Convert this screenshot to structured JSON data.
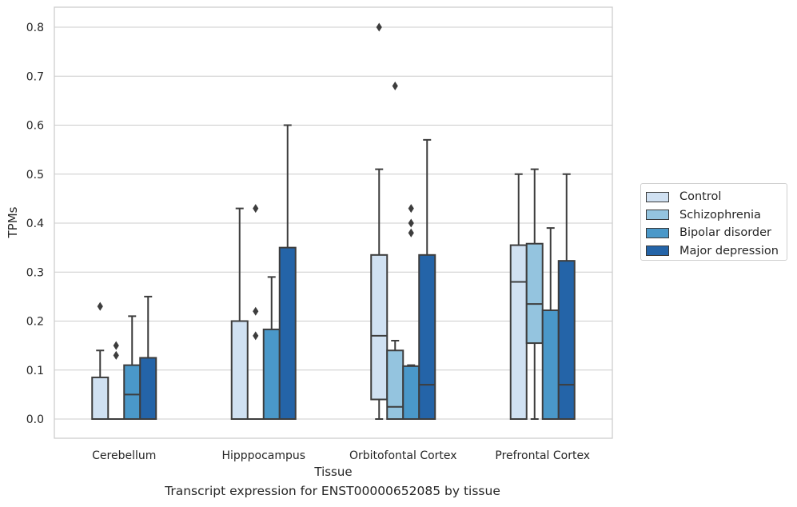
{
  "chart_data": {
    "type": "box",
    "title": "",
    "caption": "Transcript expression for ENST00000652085 by tissue",
    "xlabel": "Tissue",
    "ylabel": "TPMs",
    "ylim": [
      -0.04,
      0.84
    ],
    "yticks": [
      0.0,
      0.1,
      0.2,
      0.3,
      0.4,
      0.5,
      0.6,
      0.7,
      0.8
    ],
    "ytick_labels": [
      "0.0",
      "0.1",
      "0.2",
      "0.3",
      "0.4",
      "0.5",
      "0.6",
      "0.7",
      "0.8"
    ],
    "grid": "horizontal",
    "legend_position": "right",
    "categories": [
      "Cerebellum",
      "Hipppocampus",
      "Orbitofontal Cortex",
      "Prefrontal Cortex"
    ],
    "series": [
      {
        "name": "Control",
        "color": "#d0e1f2",
        "boxes": [
          {
            "whisker_low": 0.0,
            "q1": 0.0,
            "median": 0.0,
            "q3": 0.085,
            "whisker_high": 0.14,
            "outliers": [
              0.23
            ]
          },
          {
            "whisker_low": 0.0,
            "q1": 0.0,
            "median": 0.0,
            "q3": 0.2,
            "whisker_high": 0.43,
            "outliers": []
          },
          {
            "whisker_low": 0.0,
            "q1": 0.04,
            "median": 0.17,
            "q3": 0.335,
            "whisker_high": 0.51,
            "outliers": [
              0.8
            ]
          },
          {
            "whisker_low": 0.0,
            "q1": 0.0,
            "median": 0.28,
            "q3": 0.355,
            "whisker_high": 0.5,
            "outliers": []
          }
        ]
      },
      {
        "name": "Schizophrenia",
        "color": "#94c4df",
        "boxes": [
          {
            "whisker_low": 0.0,
            "q1": 0.0,
            "median": 0.0,
            "q3": 0.0,
            "whisker_high": 0.0,
            "outliers": [
              0.13,
              0.15
            ]
          },
          {
            "whisker_low": 0.0,
            "q1": 0.0,
            "median": 0.0,
            "q3": 0.0,
            "whisker_high": 0.0,
            "outliers": [
              0.17,
              0.22,
              0.43
            ]
          },
          {
            "whisker_low": 0.0,
            "q1": 0.0,
            "median": 0.025,
            "q3": 0.14,
            "whisker_high": 0.16,
            "outliers": [
              0.68
            ]
          },
          {
            "whisker_low": 0.0,
            "q1": 0.155,
            "median": 0.235,
            "q3": 0.358,
            "whisker_high": 0.51,
            "outliers": []
          }
        ]
      },
      {
        "name": "Bipolar disorder",
        "color": "#4a98c9",
        "boxes": [
          {
            "whisker_low": 0.0,
            "q1": 0.0,
            "median": 0.05,
            "q3": 0.11,
            "whisker_high": 0.21,
            "outliers": []
          },
          {
            "whisker_low": 0.0,
            "q1": 0.0,
            "median": 0.0,
            "q3": 0.183,
            "whisker_high": 0.29,
            "outliers": []
          },
          {
            "whisker_low": 0.0,
            "q1": 0.0,
            "median": 0.0,
            "q3": 0.108,
            "whisker_high": 0.11,
            "outliers": [
              0.38,
              0.4,
              0.43
            ]
          },
          {
            "whisker_low": 0.0,
            "q1": 0.0,
            "median": 0.0,
            "q3": 0.222,
            "whisker_high": 0.39,
            "outliers": []
          }
        ]
      },
      {
        "name": "Major depression",
        "color": "#2464a8",
        "boxes": [
          {
            "whisker_low": 0.0,
            "q1": 0.0,
            "median": 0.0,
            "q3": 0.125,
            "whisker_high": 0.25,
            "outliers": []
          },
          {
            "whisker_low": 0.0,
            "q1": 0.0,
            "median": 0.0,
            "q3": 0.35,
            "whisker_high": 0.6,
            "outliers": []
          },
          {
            "whisker_low": 0.0,
            "q1": 0.0,
            "median": 0.07,
            "q3": 0.335,
            "whisker_high": 0.57,
            "outliers": []
          },
          {
            "whisker_low": 0.0,
            "q1": 0.0,
            "median": 0.07,
            "q3": 0.323,
            "whisker_high": 0.5,
            "outliers": []
          }
        ]
      }
    ]
  }
}
